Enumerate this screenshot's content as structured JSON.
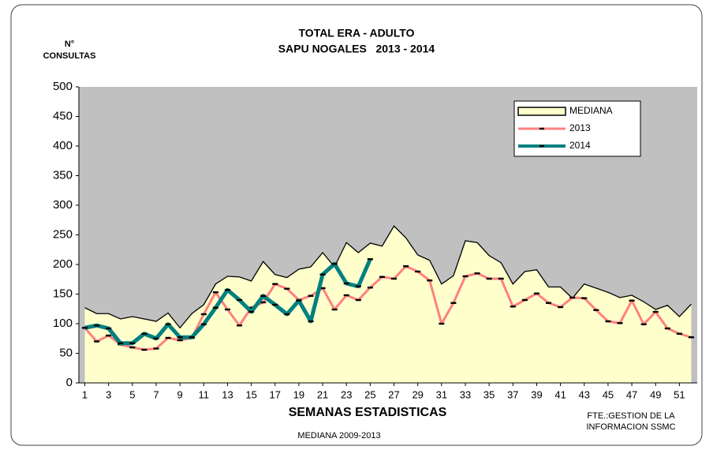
{
  "chart_data": {
    "type": "line",
    "title": [
      "TOTAL ERA - ADULTO",
      "SAPU NOGALES   2013 - 2014"
    ],
    "y_label": [
      "N°",
      "CONSULTAS"
    ],
    "x_label": "SEMANAS ESTADISTICAS",
    "annotations": [
      "FTE.:GESTION DE LA",
      "INFORMACION SSMC",
      "MEDIANA 2009-2013"
    ],
    "x": [
      1,
      2,
      3,
      4,
      5,
      6,
      7,
      8,
      9,
      10,
      11,
      12,
      13,
      14,
      15,
      16,
      17,
      18,
      19,
      20,
      21,
      22,
      23,
      24,
      25,
      26,
      27,
      28,
      29,
      30,
      31,
      32,
      33,
      34,
      35,
      36,
      37,
      38,
      39,
      40,
      41,
      42,
      43,
      44,
      45,
      46,
      47,
      48,
      49,
      50,
      51,
      52
    ],
    "xlim": [
      0.5,
      52.5
    ],
    "xticks": [
      1,
      3,
      5,
      7,
      9,
      11,
      13,
      15,
      17,
      19,
      21,
      23,
      25,
      27,
      29,
      31,
      33,
      35,
      37,
      39,
      41,
      43,
      45,
      47,
      49,
      51
    ],
    "ylim": [
      0,
      500
    ],
    "yticks": [
      0,
      50,
      100,
      150,
      200,
      250,
      300,
      350,
      400,
      450,
      500
    ],
    "background": "#c0c0c0",
    "legend": "upper right",
    "series": [
      {
        "name": "MEDIANA",
        "color": "#000000",
        "fill": "#ffffcc",
        "style": "area",
        "values": [
          127,
          117,
          117,
          108,
          112,
          108,
          104,
          118,
          93,
          117,
          132,
          167,
          180,
          179,
          172,
          205,
          183,
          178,
          192,
          196,
          220,
          196,
          237,
          220,
          236,
          231,
          265,
          245,
          216,
          207,
          167,
          181,
          240,
          237,
          215,
          203,
          167,
          188,
          191,
          162,
          162,
          143,
          167,
          160,
          153,
          144,
          148,
          137,
          124,
          131,
          112,
          133
        ]
      },
      {
        "name": "2013",
        "color": "#ff8080",
        "style": "line",
        "values": [
          93,
          70,
          80,
          65,
          60,
          56,
          58,
          76,
          72,
          76,
          116,
          153,
          124,
          97,
          127,
          136,
          167,
          159,
          140,
          147,
          160,
          124,
          148,
          140,
          161,
          179,
          176,
          197,
          188,
          173,
          100,
          135,
          180,
          185,
          176,
          176,
          129,
          140,
          151,
          135,
          128,
          144,
          143,
          123,
          104,
          101,
          139,
          99,
          120,
          92,
          83,
          77
        ]
      },
      {
        "name": "2014",
        "color": "#008080",
        "style": "line",
        "values": [
          93,
          97,
          92,
          67,
          67,
          83,
          75,
          99,
          77,
          77,
          99,
          127,
          157,
          140,
          120,
          147,
          132,
          116,
          139,
          104,
          183,
          201,
          168,
          163,
          209,
          null,
          null,
          null,
          null,
          null,
          null,
          null,
          null,
          null,
          null,
          null,
          null,
          null,
          null,
          null,
          null,
          null,
          null,
          null,
          null,
          null,
          null,
          null,
          null,
          null,
          null,
          null
        ]
      }
    ]
  }
}
